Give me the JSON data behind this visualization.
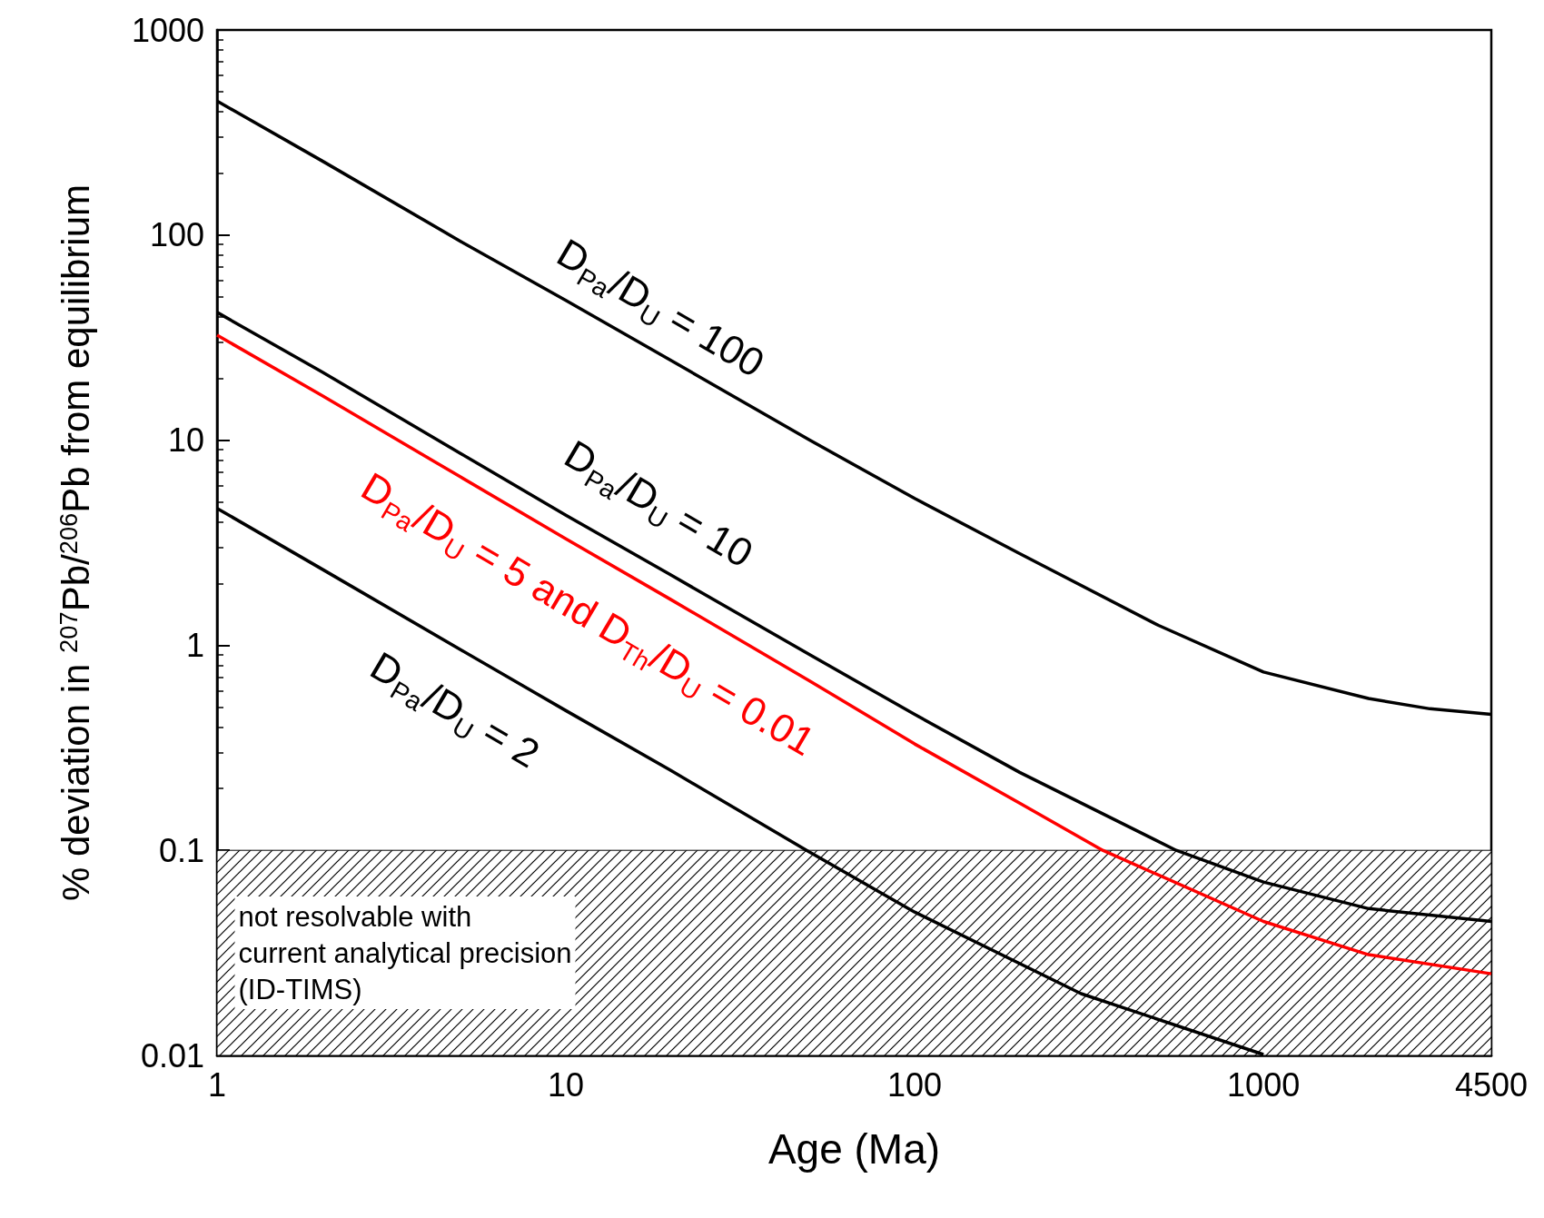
{
  "chart_data": {
    "type": "line",
    "xlabel": "Age (Ma)",
    "ylabel": "% deviation in $^{207}$Pb/$^{206}$Pb from equilibrium",
    "log": "xy",
    "xlim": [
      1,
      4500
    ],
    "xticks": [
      1,
      10,
      100,
      1000,
      4500
    ],
    "ylim": [
      0.01,
      1000
    ],
    "yticks": [
      0.01,
      0.1,
      1,
      10,
      100,
      1000
    ],
    "series": [
      {
        "name": "D$_{Pa}$/D$_{U}$ = 100",
        "color": "#000000",
        "x": [
          1,
          2,
          5,
          10,
          20,
          50,
          100,
          200,
          500,
          1000,
          2000,
          3000,
          4500
        ],
        "values": [
          450,
          230,
          93,
          48,
          24.5,
          10,
          5.2,
          2.8,
          1.25,
          0.74,
          0.55,
          0.49,
          0.46
        ]
      },
      {
        "name": "D$_{Pa}$/D$_{U}$ = 10",
        "color": "#000000",
        "x": [
          1,
          2,
          5,
          10,
          20,
          50,
          100,
          200,
          562,
          1000,
          2000,
          4500
        ],
        "values": [
          42,
          21.5,
          8.6,
          4.3,
          2.2,
          0.9,
          0.46,
          0.24,
          0.1,
          0.07,
          0.052,
          0.045
        ]
      },
      {
        "name": "D$_{Pa}$/D$_{U}$ = 5 and D$_{Th}$/D$_{U}$ = 0.01",
        "color": "#ff0000",
        "x": [
          1,
          2,
          5,
          10,
          20,
          50,
          100,
          200,
          346,
          1000,
          2000,
          4500
        ],
        "values": [
          32.5,
          16.5,
          6.6,
          3.3,
          1.67,
          0.67,
          0.33,
          0.17,
          0.1,
          0.045,
          0.031,
          0.025
        ]
      },
      {
        "name": "D$_{Pa}$/D$_{U}$ = 2",
        "color": "#000000",
        "x": [
          1,
          2,
          5,
          10,
          20,
          49,
          100,
          300,
          1000
        ],
        "values": [
          4.65,
          2.35,
          0.95,
          0.48,
          0.245,
          0.1,
          0.05,
          0.02,
          0.0101
        ]
      }
    ],
    "bands": [
      {
        "axis": "y",
        "from": 0.01,
        "to": 0.1,
        "label": "not resolvable with\ncurrent analytical precision\n(ID-TIMS)"
      }
    ]
  }
}
